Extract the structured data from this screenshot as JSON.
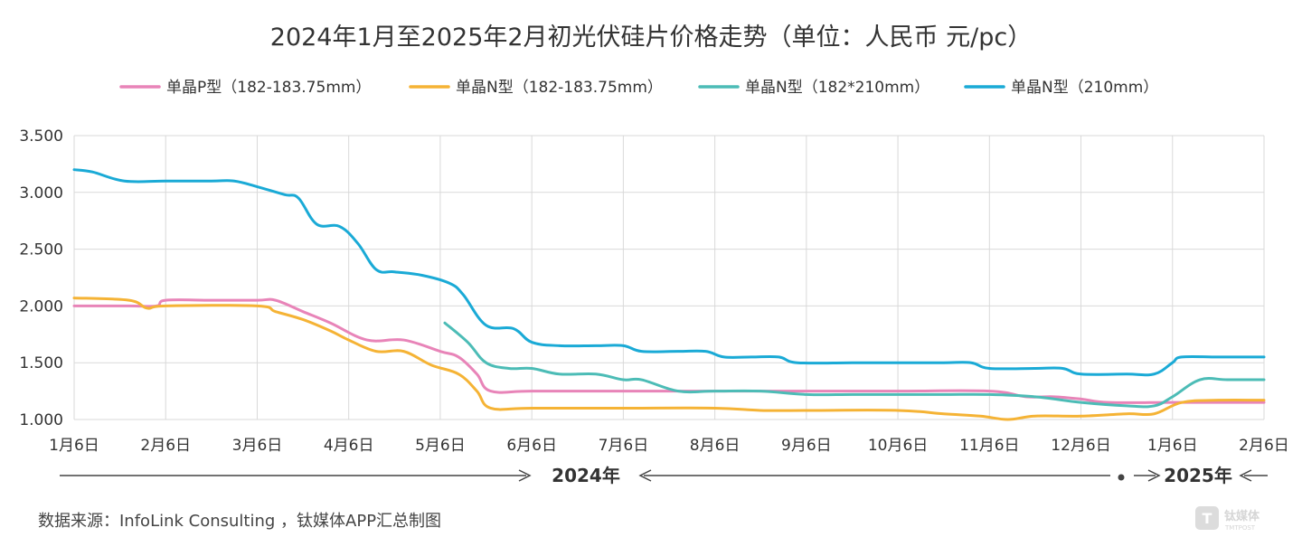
{
  "chart_data": {
    "type": "line",
    "title": "2024年1月至2025年2月初光伏硅片价格走势（单位：人民币 元/pc）",
    "categories": [
      "1月6日",
      "2月6日",
      "3月6日",
      "4月6日",
      "5月6日",
      "6月6日",
      "7月6日",
      "8月6日",
      "9月6日",
      "10月6日",
      "11月6日",
      "12月6日",
      "1月6日",
      "2月6日"
    ],
    "ylim": [
      1.0,
      3.5
    ],
    "yticks": [
      "3.500",
      "3.000",
      "2.500",
      "2.000",
      "1.500",
      "1.000"
    ],
    "ytick_values": [
      3.5,
      3.0,
      2.5,
      2.0,
      1.5,
      1.0
    ],
    "grid": true,
    "legend_position": "top",
    "series": [
      {
        "name": "单晶P型（182-183.75mm）",
        "color": "#e884b8",
        "points": [
          [
            0,
            2.0
          ],
          [
            0.6,
            2.0
          ],
          [
            0.9,
            2.0
          ],
          [
            1.0,
            2.05
          ],
          [
            1.5,
            2.05
          ],
          [
            2.0,
            2.05
          ],
          [
            2.2,
            2.05
          ],
          [
            2.5,
            1.95
          ],
          [
            2.8,
            1.85
          ],
          [
            3.2,
            1.7
          ],
          [
            3.6,
            1.7
          ],
          [
            4.0,
            1.6
          ],
          [
            4.2,
            1.55
          ],
          [
            4.4,
            1.4
          ],
          [
            4.55,
            1.25
          ],
          [
            5.0,
            1.25
          ],
          [
            6.0,
            1.25
          ],
          [
            7.0,
            1.25
          ],
          [
            8.0,
            1.25
          ],
          [
            9.0,
            1.25
          ],
          [
            10.0,
            1.25
          ],
          [
            10.4,
            1.2
          ],
          [
            10.7,
            1.2
          ],
          [
            11.0,
            1.18
          ],
          [
            11.3,
            1.15
          ],
          [
            12.0,
            1.15
          ],
          [
            13.0,
            1.15
          ]
        ]
      },
      {
        "name": "单晶N型（182-183.75mm）",
        "color": "#f5b335",
        "points": [
          [
            0,
            2.07
          ],
          [
            0.6,
            2.05
          ],
          [
            0.8,
            1.98
          ],
          [
            1.0,
            2.0
          ],
          [
            2.0,
            2.0
          ],
          [
            2.2,
            1.95
          ],
          [
            2.5,
            1.88
          ],
          [
            2.8,
            1.78
          ],
          [
            3.0,
            1.7
          ],
          [
            3.3,
            1.6
          ],
          [
            3.6,
            1.6
          ],
          [
            3.9,
            1.48
          ],
          [
            4.2,
            1.4
          ],
          [
            4.4,
            1.25
          ],
          [
            4.55,
            1.1
          ],
          [
            5.0,
            1.1
          ],
          [
            6.0,
            1.1
          ],
          [
            7.0,
            1.1
          ],
          [
            7.5,
            1.08
          ],
          [
            8.0,
            1.08
          ],
          [
            9.0,
            1.08
          ],
          [
            9.5,
            1.05
          ],
          [
            9.9,
            1.03
          ],
          [
            10.2,
            1.0
          ],
          [
            10.5,
            1.03
          ],
          [
            11.0,
            1.03
          ],
          [
            11.5,
            1.05
          ],
          [
            11.8,
            1.05
          ],
          [
            12.1,
            1.15
          ],
          [
            12.5,
            1.17
          ],
          [
            13.0,
            1.17
          ]
        ]
      },
      {
        "name": "单晶N型（182*210mm）",
        "color": "#4cbcb6",
        "points": [
          [
            4.05,
            1.85
          ],
          [
            4.3,
            1.68
          ],
          [
            4.5,
            1.5
          ],
          [
            4.75,
            1.45
          ],
          [
            5.0,
            1.45
          ],
          [
            5.3,
            1.4
          ],
          [
            5.7,
            1.4
          ],
          [
            6.0,
            1.35
          ],
          [
            6.2,
            1.35
          ],
          [
            6.6,
            1.25
          ],
          [
            7.0,
            1.25
          ],
          [
            7.5,
            1.25
          ],
          [
            8.0,
            1.22
          ],
          [
            8.5,
            1.22
          ],
          [
            9.0,
            1.22
          ],
          [
            9.5,
            1.22
          ],
          [
            10.0,
            1.22
          ],
          [
            10.5,
            1.2
          ],
          [
            11.0,
            1.15
          ],
          [
            11.5,
            1.12
          ],
          [
            11.8,
            1.12
          ],
          [
            12.0,
            1.2
          ],
          [
            12.3,
            1.35
          ],
          [
            12.6,
            1.35
          ],
          [
            13.0,
            1.35
          ]
        ]
      },
      {
        "name": "单晶N型（210mm）",
        "color": "#1aaad6",
        "points": [
          [
            0,
            3.2
          ],
          [
            0.2,
            3.18
          ],
          [
            0.55,
            3.1
          ],
          [
            1.0,
            3.1
          ],
          [
            1.5,
            3.1
          ],
          [
            1.75,
            3.1
          ],
          [
            2.0,
            3.05
          ],
          [
            2.3,
            2.98
          ],
          [
            2.45,
            2.95
          ],
          [
            2.65,
            2.72
          ],
          [
            2.9,
            2.7
          ],
          [
            3.1,
            2.55
          ],
          [
            3.3,
            2.32
          ],
          [
            3.5,
            2.3
          ],
          [
            3.8,
            2.27
          ],
          [
            4.1,
            2.2
          ],
          [
            4.25,
            2.1
          ],
          [
            4.5,
            1.83
          ],
          [
            4.8,
            1.8
          ],
          [
            5.0,
            1.68
          ],
          [
            5.3,
            1.65
          ],
          [
            5.7,
            1.65
          ],
          [
            6.0,
            1.65
          ],
          [
            6.2,
            1.6
          ],
          [
            6.6,
            1.6
          ],
          [
            6.9,
            1.6
          ],
          [
            7.1,
            1.55
          ],
          [
            7.4,
            1.55
          ],
          [
            7.7,
            1.55
          ],
          [
            7.9,
            1.5
          ],
          [
            8.5,
            1.5
          ],
          [
            9.0,
            1.5
          ],
          [
            9.5,
            1.5
          ],
          [
            9.8,
            1.5
          ],
          [
            10.0,
            1.45
          ],
          [
            10.5,
            1.45
          ],
          [
            10.8,
            1.45
          ],
          [
            11.0,
            1.4
          ],
          [
            11.5,
            1.4
          ],
          [
            11.8,
            1.4
          ],
          [
            12.0,
            1.5
          ],
          [
            12.1,
            1.55
          ],
          [
            12.5,
            1.55
          ],
          [
            13.0,
            1.55
          ]
        ]
      }
    ]
  },
  "year_annotations": {
    "year_2024": "2024年",
    "year_2025": "2025年"
  },
  "source_text": "数据来源：InfoLink Consulting ，钛媒体APP汇总制图",
  "watermark": {
    "name": "钛媒体",
    "sub": "TMTPOST"
  },
  "colors": {
    "grid": "#d9d9d9",
    "text": "#333333",
    "arrow": "#444444"
  }
}
